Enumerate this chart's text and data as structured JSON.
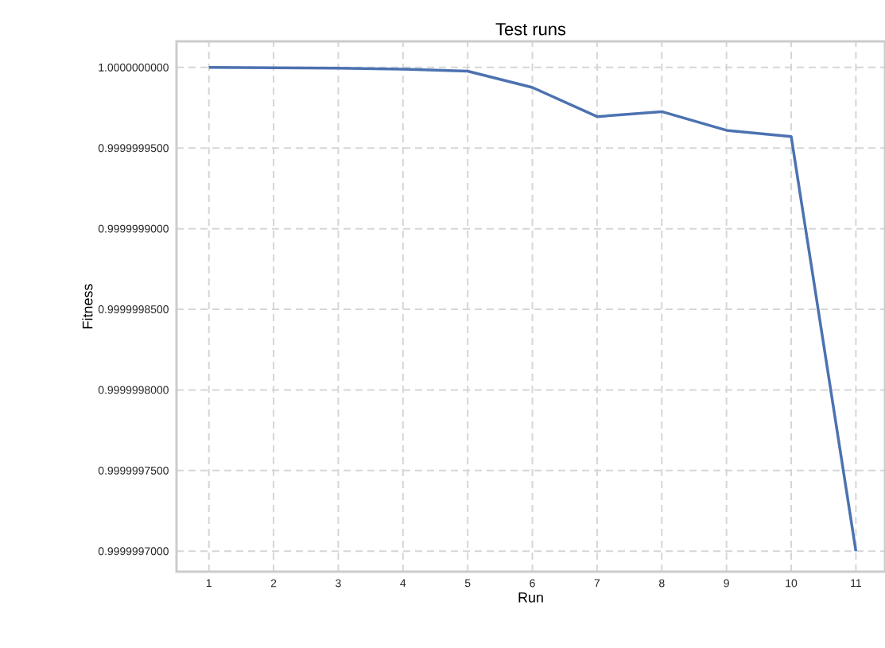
{
  "chart_data": {
    "type": "line",
    "title": "Test runs",
    "xlabel": "Run",
    "ylabel": "Fitness",
    "x": [
      1,
      2,
      3,
      4,
      5,
      6,
      7,
      8,
      9,
      10,
      11
    ],
    "values": [
      1.0,
      0.9999999998,
      0.9999999995,
      0.9999999989,
      0.9999999977,
      0.9999999876,
      0.9999999695,
      0.9999999726,
      0.999999961,
      0.9999999571,
      0.9999997
    ],
    "color": "#4c72b0",
    "line_style": "solid",
    "xlim": [
      0.5,
      11.45
    ],
    "ylim": [
      0.9999996873,
      1.0000000162
    ],
    "xticks": [
      1,
      2,
      3,
      4,
      5,
      6,
      7,
      8,
      9,
      10,
      11
    ],
    "yticks": [
      {
        "value": 0.9999997,
        "label": "0.9999997000"
      },
      {
        "value": 0.99999975,
        "label": "0.9999997500"
      },
      {
        "value": 0.9999998,
        "label": "0.9999998000"
      },
      {
        "value": 0.99999985,
        "label": "0.9999998500"
      },
      {
        "value": 0.9999999,
        "label": "0.9999999000"
      },
      {
        "value": 0.99999995,
        "label": "0.9999999500"
      },
      {
        "value": 1.0,
        "label": "1.0000000000"
      }
    ],
    "grid": true
  }
}
